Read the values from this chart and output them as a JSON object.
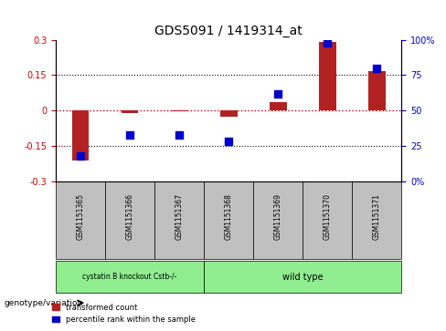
{
  "title": "GDS5091 / 1419314_at",
  "samples": [
    "GSM1151365",
    "GSM1151366",
    "GSM1151367",
    "GSM1151368",
    "GSM1151369",
    "GSM1151370",
    "GSM1151371"
  ],
  "bar_values": [
    -0.21,
    -0.01,
    -0.005,
    -0.025,
    0.035,
    0.29,
    0.165
  ],
  "dot_values": [
    0.18,
    0.33,
    0.325,
    0.285,
    0.615,
    0.975,
    0.795
  ],
  "ylim_left": [
    -0.3,
    0.3
  ],
  "ylim_right": [
    0,
    1.0
  ],
  "yticks_left": [
    -0.3,
    -0.15,
    0,
    0.15,
    0.3
  ],
  "yticks_right": [
    0,
    0.25,
    0.5,
    0.75,
    1.0
  ],
  "ytick_labels_left": [
    "-0.3",
    "-0.15",
    "0",
    "0.15",
    "0.3"
  ],
  "ytick_labels_right": [
    "0%",
    "25",
    "50",
    "75",
    "100%"
  ],
  "hlines": [
    0.15,
    0,
    -0.15
  ],
  "bar_color": "#B22222",
  "dot_color": "#0000CD",
  "group1_samples": [
    "GSM1151365",
    "GSM1151366",
    "GSM1151367"
  ],
  "group1_label": "cystatin B knockout Cstb-/-",
  "group2_samples": [
    "GSM1151368",
    "GSM1151369",
    "GSM1151370",
    "GSM1151371"
  ],
  "group2_label": "wild type",
  "group1_color": "#90EE90",
  "group2_color": "#90EE90",
  "genotype_label": "genotype/variation",
  "legend_bar": "transformed count",
  "legend_dot": "percentile rank within the sample",
  "bg_plot": "#FFFFFF",
  "tick_color_left": "#CC0000",
  "tick_color_right": "#0000CC",
  "xlabel_area_color": "#C0C0C0"
}
